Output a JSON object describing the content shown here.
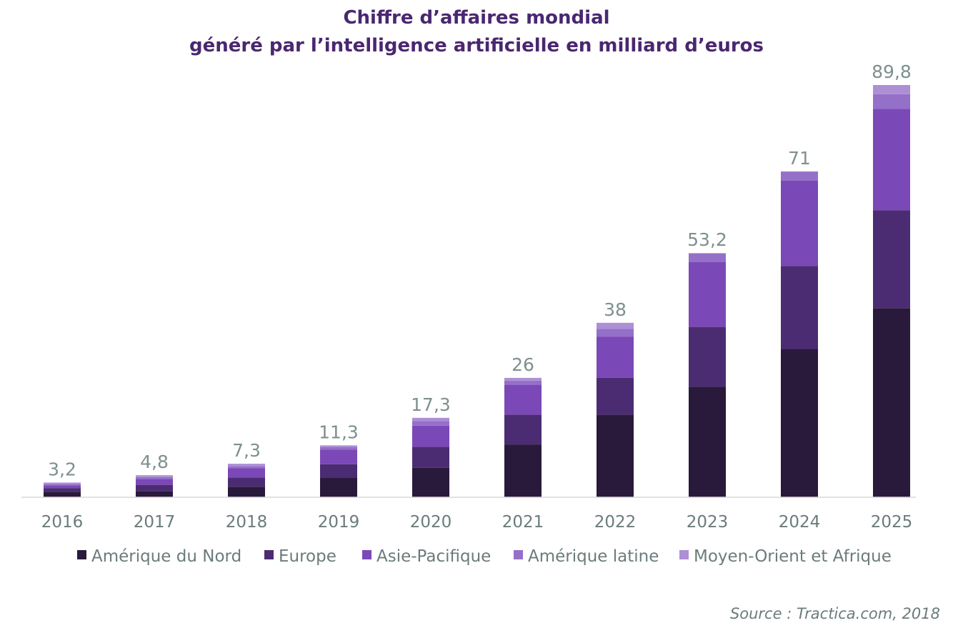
{
  "chart_data": {
    "type": "bar",
    "stacked": true,
    "title_lines": [
      "Chiffre d’affaires mondial",
      "généré par l’intelligence artificielle en milliard d’euros"
    ],
    "categories": [
      "2016",
      "2017",
      "2018",
      "2019",
      "2020",
      "2021",
      "2022",
      "2023",
      "2024",
      "2025"
    ],
    "totals": [
      3.2,
      4.8,
      7.3,
      11.3,
      17.3,
      26,
      38,
      53.2,
      71,
      89.8
    ],
    "total_labels": [
      "3,2",
      "4,8",
      "7,3",
      "11,3",
      "17,3",
      "26",
      "38",
      "53,2",
      "71",
      "89,8"
    ],
    "series": [
      {
        "name": "Amérique du Nord",
        "color": "#29193b",
        "values": [
          1.2,
          1.3,
          2.3,
          4.2,
          6.4,
          11.5,
          18.0,
          24.1,
          32.3,
          41.2
        ]
      },
      {
        "name": "Europe",
        "color": "#4b2c72",
        "values": [
          0.8,
          1.4,
          2.0,
          3.0,
          4.6,
          6.5,
          8.0,
          13.0,
          18.1,
          21.3
        ]
      },
      {
        "name": "Asie-Pacifique",
        "color": "#7b48b7",
        "values": [
          0.6,
          1.3,
          2.0,
          3.2,
          4.6,
          6.5,
          9.0,
          14.1,
          18.6,
          22.1
        ]
      },
      {
        "name": "Amérique latine",
        "color": "#9470c8",
        "values": [
          0.3,
          0.4,
          0.5,
          0.5,
          1.0,
          0.9,
          1.7,
          1.9,
          1.9,
          3.2
        ]
      },
      {
        "name": "Moyen-Orient et Afrique",
        "color": "#ad8fd6",
        "values": [
          0.3,
          0.4,
          0.5,
          0.4,
          0.7,
          0.6,
          1.3,
          0.1,
          0.1,
          2.0
        ]
      }
    ],
    "ylim": [
      0,
      95
    ],
    "grid": false,
    "legend_position": "bottom",
    "source": "Source : Tractica.com, 2018"
  }
}
